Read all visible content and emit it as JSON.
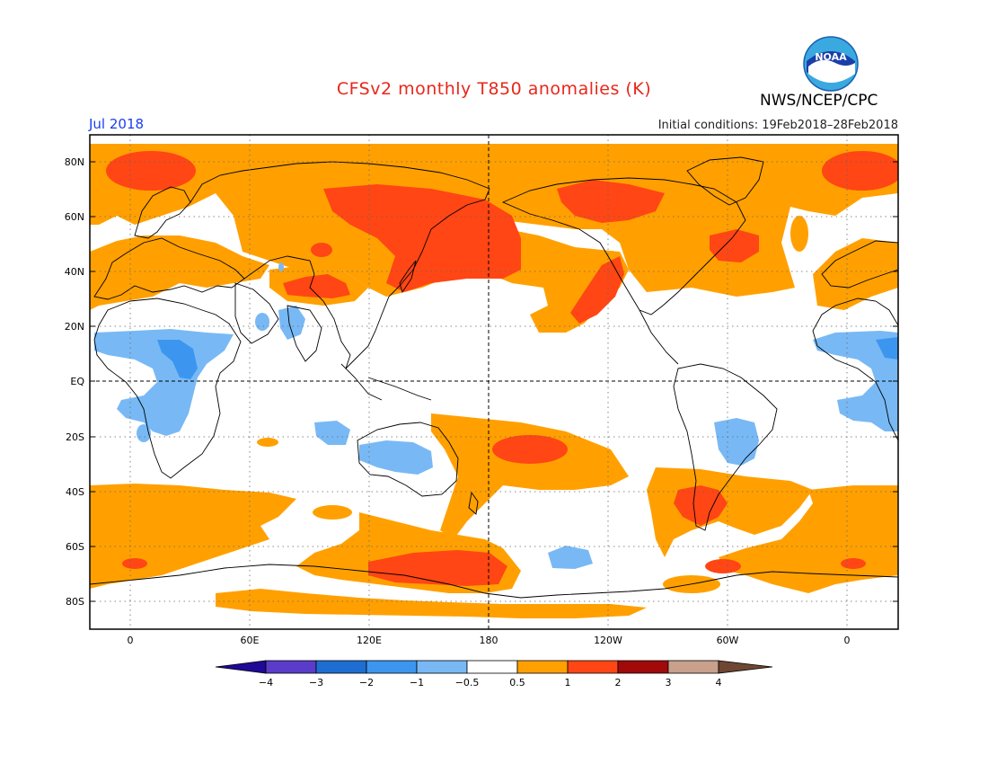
{
  "header": {
    "title": "CFSv2 monthly T850 anomalies (K)",
    "month": "Jul 2018",
    "initial_conditions": "Initial conditions: 19Feb2018–28Feb2018",
    "agency": "NWS/NCEP/CPC",
    "logo_text": "NOAA"
  },
  "map": {
    "projection": "equirectangular",
    "lat_labels": [
      "80N",
      "60N",
      "40N",
      "20N",
      "EQ",
      "20S",
      "40S",
      "60S",
      "80S"
    ],
    "lon_labels": [
      "0",
      "60E",
      "120E",
      "180",
      "120W",
      "60W",
      "0"
    ]
  },
  "colorbar": {
    "tick_labels": [
      "−4",
      "−3",
      "−2",
      "−1",
      "−0.5",
      "0.5",
      "1",
      "2",
      "3",
      "4"
    ],
    "colors": [
      "#1e0a96",
      "#5a3cc8",
      "#1e6ed2",
      "#3c96f0",
      "#78b9f5",
      "#ffffff",
      "#ffa000",
      "#ff4614",
      "#a00a0a",
      "#c8a08c",
      "#6e4632"
    ],
    "units": "K"
  },
  "colors": {
    "anom_0_5_1": "#ffa000",
    "anom_1_2": "#ff4614",
    "anom_neg_1_neg_0_5": "#78b9f5",
    "anom_neg_2_neg_1": "#3c96f0",
    "title_color": "#e8271b",
    "month_color": "#1a3df0"
  }
}
